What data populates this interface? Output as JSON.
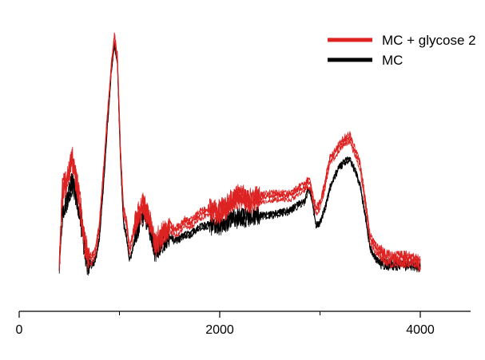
{
  "chart_data": {
    "type": "line",
    "title": "",
    "xlabel": "",
    "ylabel": "",
    "xlim": [
      0,
      4500
    ],
    "ylim": [
      0,
      1
    ],
    "grid": false,
    "y_axis_shown": false,
    "legend_position": "top-right",
    "x_ticks": [
      0,
      2000,
      4000
    ],
    "x_tick_labels": [
      "0",
      "2000",
      "4000"
    ],
    "x_minor_ticks": [
      1000,
      3000
    ],
    "series": [
      {
        "name": "MC + glycose 2",
        "color": "#dd2222",
        "x": [
          400,
          430,
          470,
          500,
          530,
          560,
          600,
          640,
          680,
          720,
          760,
          800,
          840,
          880,
          920,
          950,
          980,
          1010,
          1040,
          1070,
          1100,
          1130,
          1160,
          1200,
          1240,
          1280,
          1320,
          1350,
          1380,
          1420,
          1460,
          1500,
          1550,
          1600,
          1650,
          1700,
          1800,
          1900,
          2000,
          2100,
          2200,
          2300,
          2400,
          2500,
          2600,
          2700,
          2800,
          2850,
          2880,
          2900,
          2930,
          2960,
          3000,
          3050,
          3100,
          3150,
          3200,
          3250,
          3300,
          3330,
          3360,
          3400,
          3450,
          3500,
          3550,
          3600,
          3650,
          3700,
          3750,
          3800,
          3900,
          4000
        ],
        "y": [
          0.02,
          0.31,
          0.37,
          0.42,
          0.46,
          0.39,
          0.29,
          0.14,
          0.04,
          0.03,
          0.06,
          0.17,
          0.4,
          0.64,
          0.86,
          0.98,
          0.89,
          0.5,
          0.24,
          0.19,
          0.07,
          0.12,
          0.19,
          0.23,
          0.26,
          0.22,
          0.16,
          0.09,
          0.11,
          0.13,
          0.14,
          0.17,
          0.15,
          0.16,
          0.19,
          0.18,
          0.22,
          0.24,
          0.23,
          0.27,
          0.3,
          0.28,
          0.29,
          0.3,
          0.3,
          0.3,
          0.33,
          0.34,
          0.36,
          0.35,
          0.29,
          0.24,
          0.26,
          0.35,
          0.46,
          0.48,
          0.52,
          0.54,
          0.55,
          0.51,
          0.48,
          0.43,
          0.28,
          0.12,
          0.08,
          0.06,
          0.04,
          0.03,
          0.03,
          0.03,
          0.03,
          0.01
        ]
      },
      {
        "name": "MC",
        "color": "#000000",
        "x": [
          400,
          430,
          470,
          500,
          530,
          560,
          600,
          640,
          680,
          720,
          760,
          800,
          840,
          880,
          920,
          950,
          980,
          1010,
          1040,
          1070,
          1100,
          1130,
          1160,
          1200,
          1240,
          1280,
          1320,
          1350,
          1380,
          1420,
          1460,
          1500,
          1550,
          1600,
          1650,
          1700,
          1800,
          1900,
          2000,
          2100,
          2200,
          2300,
          2400,
          2500,
          2600,
          2700,
          2800,
          2850,
          2880,
          2900,
          2930,
          2960,
          3000,
          3050,
          3100,
          3150,
          3200,
          3250,
          3300,
          3330,
          3360,
          3400,
          3450,
          3500,
          3550,
          3600,
          3650,
          3700,
          3750,
          3800,
          3900,
          4000
        ],
        "y": [
          0.0,
          0.22,
          0.27,
          0.31,
          0.36,
          0.32,
          0.24,
          0.1,
          0.02,
          0.01,
          0.03,
          0.12,
          0.34,
          0.6,
          0.84,
          0.95,
          0.87,
          0.46,
          0.19,
          0.13,
          0.03,
          0.07,
          0.13,
          0.19,
          0.23,
          0.2,
          0.14,
          0.07,
          0.08,
          0.1,
          0.11,
          0.13,
          0.11,
          0.12,
          0.14,
          0.14,
          0.17,
          0.18,
          0.18,
          0.2,
          0.21,
          0.21,
          0.22,
          0.22,
          0.23,
          0.24,
          0.27,
          0.28,
          0.33,
          0.33,
          0.26,
          0.18,
          0.19,
          0.25,
          0.34,
          0.39,
          0.43,
          0.45,
          0.46,
          0.43,
          0.4,
          0.35,
          0.22,
          0.08,
          0.04,
          0.02,
          0.01,
          0.01,
          0.01,
          0.01,
          0.01,
          0.0
        ]
      }
    ]
  }
}
